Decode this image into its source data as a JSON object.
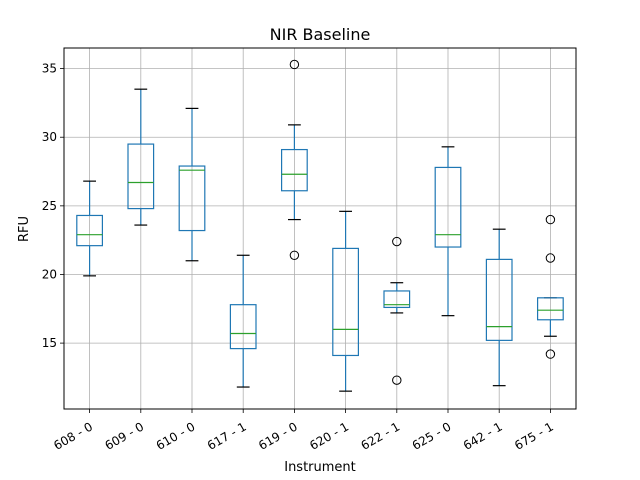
{
  "chart_data": {
    "type": "box",
    "title": "NIR Baseline",
    "xlabel": "Instrument",
    "ylabel": "RFU",
    "ylim": [
      10.2,
      36.5
    ],
    "yticks": [
      15,
      20,
      25,
      30,
      35
    ],
    "ytick_labels": [
      "15",
      "20",
      "25",
      "30",
      "35"
    ],
    "grid": true,
    "categories": [
      "608 - 0",
      "609 - 0",
      "610 - 0",
      "617 - 1",
      "619 - 0",
      "620 - 1",
      "622 - 1",
      "625 - 0",
      "642 - 1",
      "675 - 1"
    ],
    "boxes": [
      {
        "whisker_low": 19.9,
        "q1": 22.1,
        "median": 22.9,
        "q3": 24.3,
        "whisker_high": 26.8,
        "outliers": []
      },
      {
        "whisker_low": 23.6,
        "q1": 24.8,
        "median": 26.7,
        "q3": 29.5,
        "whisker_high": 33.5,
        "outliers": []
      },
      {
        "whisker_low": 21.0,
        "q1": 23.2,
        "median": 27.6,
        "q3": 27.9,
        "whisker_high": 32.1,
        "outliers": []
      },
      {
        "whisker_low": 11.8,
        "q1": 14.6,
        "median": 15.7,
        "q3": 17.8,
        "whisker_high": 21.4,
        "outliers": []
      },
      {
        "whisker_low": 24.0,
        "q1": 26.1,
        "median": 27.3,
        "q3": 29.1,
        "whisker_high": 30.9,
        "outliers": [
          35.3,
          21.4
        ]
      },
      {
        "whisker_low": 11.5,
        "q1": 14.1,
        "median": 16.0,
        "q3": 21.9,
        "whisker_high": 24.6,
        "outliers": []
      },
      {
        "whisker_low": 17.2,
        "q1": 17.6,
        "median": 17.8,
        "q3": 18.8,
        "whisker_high": 19.4,
        "outliers": [
          22.4,
          12.3
        ]
      },
      {
        "whisker_low": 17.0,
        "q1": 22.0,
        "median": 22.9,
        "q3": 27.8,
        "whisker_high": 29.3,
        "outliers": []
      },
      {
        "whisker_low": 11.9,
        "q1": 15.2,
        "median": 16.2,
        "q3": 21.1,
        "whisker_high": 23.3,
        "outliers": []
      },
      {
        "whisker_low": 15.5,
        "q1": 16.7,
        "median": 17.4,
        "q3": 18.3,
        "whisker_high": 18.3,
        "outliers": [
          24.0,
          21.2,
          14.2
        ]
      }
    ],
    "colors": {
      "box": "#1f77b4",
      "median": "#2ca02c",
      "grid": "#b0b0b0",
      "axis": "#000000"
    }
  }
}
